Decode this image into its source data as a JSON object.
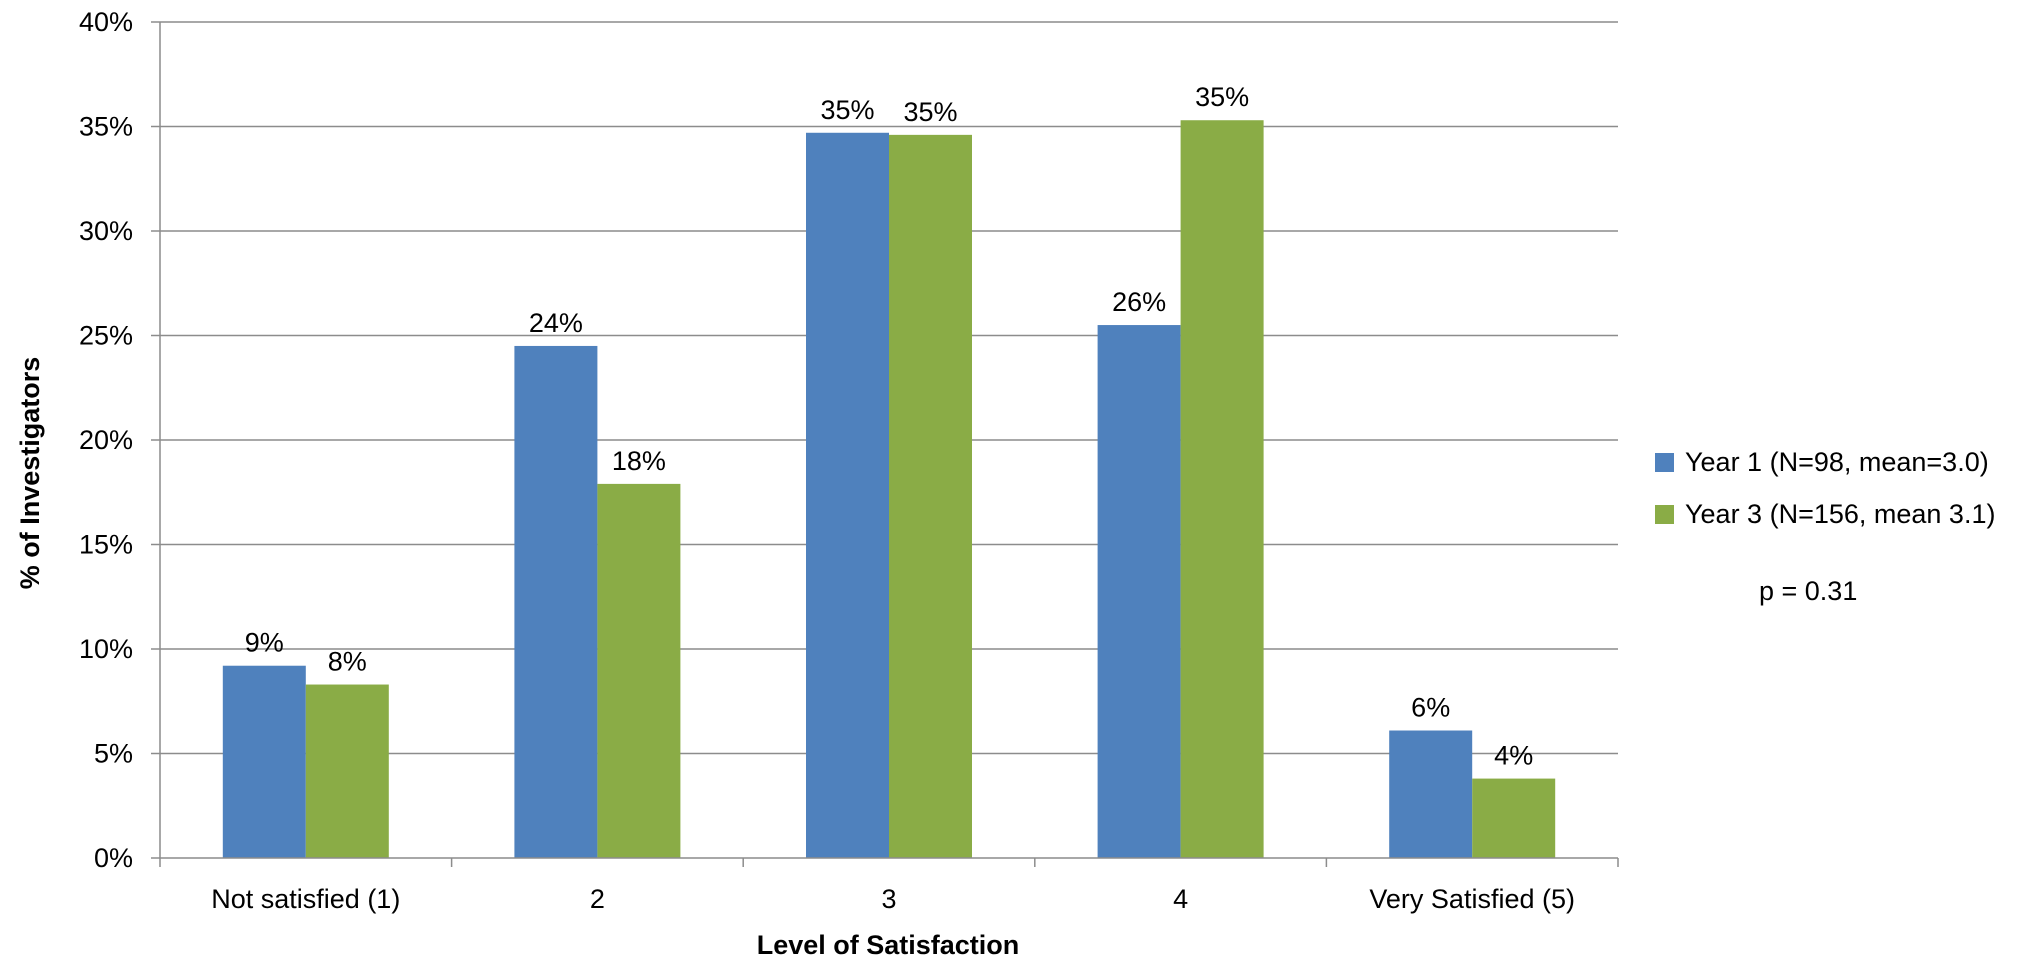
{
  "chart_data": {
    "type": "bar",
    "xlabel": "Level of Satisfaction",
    "ylabel": "% of Investigators",
    "categories": [
      "Not satisfied (1)",
      "2",
      "3",
      "4",
      "Very Satisfied (5)"
    ],
    "ylim": [
      0,
      40
    ],
    "yticks": [
      0,
      5,
      10,
      15,
      20,
      25,
      30,
      35,
      40
    ],
    "ytick_labels": [
      "0%",
      "5%",
      "10%",
      "15%",
      "20%",
      "25%",
      "30%",
      "35%",
      "40%"
    ],
    "grid": true,
    "legend_position": "right",
    "series": [
      {
        "name": "Year 1 (N=98, mean=3.0)",
        "color": "#4F81BD",
        "values": [
          9.2,
          24.5,
          34.7,
          25.5,
          6.1
        ],
        "labels": [
          "9%",
          "24%",
          "35%",
          "26%",
          "6%"
        ]
      },
      {
        "name": "Year 3 (N=156, mean 3.1)",
        "color": "#8AAC46",
        "values": [
          8.3,
          17.9,
          34.6,
          35.3,
          3.8
        ],
        "labels": [
          "8%",
          "18%",
          "35%",
          "35%",
          "4%"
        ]
      }
    ],
    "annotation": "p = 0.31"
  }
}
